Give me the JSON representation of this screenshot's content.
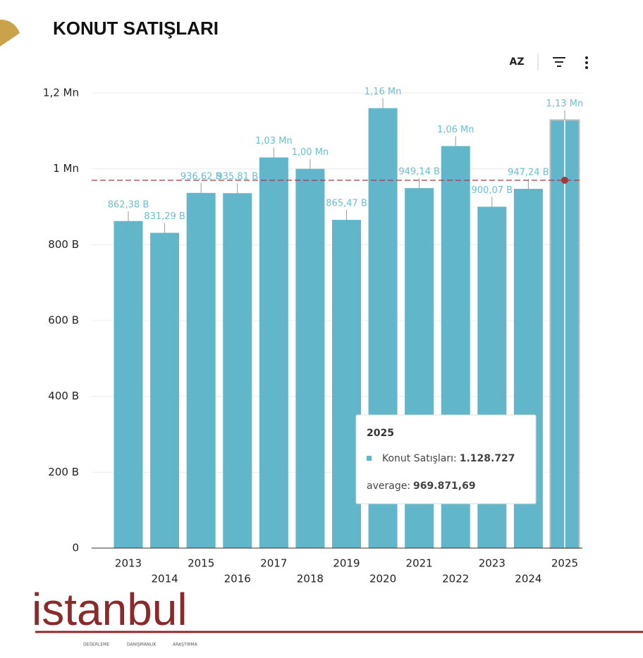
{
  "chart_data": {
    "type": "bar",
    "title": "KONUT SATIŞLARI",
    "categories": [
      "2013",
      "2014",
      "2015",
      "2016",
      "2017",
      "2018",
      "2019",
      "2020",
      "2021",
      "2022",
      "2023",
      "2024",
      "2025"
    ],
    "series": [
      {
        "name": "Konut Satışları",
        "color": "#62b6c9",
        "values": [
          862380,
          831290,
          936620,
          935810,
          1030000,
          1000000,
          865470,
          1160000,
          949140,
          1060000,
          900070,
          947240,
          1128727
        ],
        "value_labels": [
          "862,38 B",
          "831,29 B",
          "936,62 B",
          "935,81 B",
          "1,03 Mn",
          "1,00 Mn",
          "865,47 B",
          "1,16 Mn",
          "949,14 B",
          "1,06 Mn",
          "900,07 B",
          "947,24 B",
          "1,13 Mn"
        ]
      }
    ],
    "average": 969871.69,
    "average_color": "#a33a3a",
    "ylim": [
      0,
      1200000
    ],
    "yticks": [
      0,
      {
        "value": 200000,
        "label": "200 B"
      },
      {
        "value": 400000,
        "label": "400 B"
      },
      {
        "value": 600000,
        "label": "600 B"
      },
      {
        "value": 800000,
        "label": "800 B"
      },
      {
        "value": 1000000,
        "label": "1 Mn"
      },
      {
        "value": 1200000,
        "label": "1,2 Mn"
      }
    ],
    "grid": true,
    "tooltip": {
      "title": "2025",
      "series_label": "Konut Satışları:",
      "series_value": "1.128.727",
      "average_label": "average:",
      "average_value": "969.871,69"
    }
  },
  "toolbar": {
    "sort": "AZ"
  },
  "logo": {
    "name": "istanbul",
    "tags": [
      "DEĞERLEME",
      "DANIŞMANLIK",
      "ARAŞTIRMA"
    ]
  }
}
